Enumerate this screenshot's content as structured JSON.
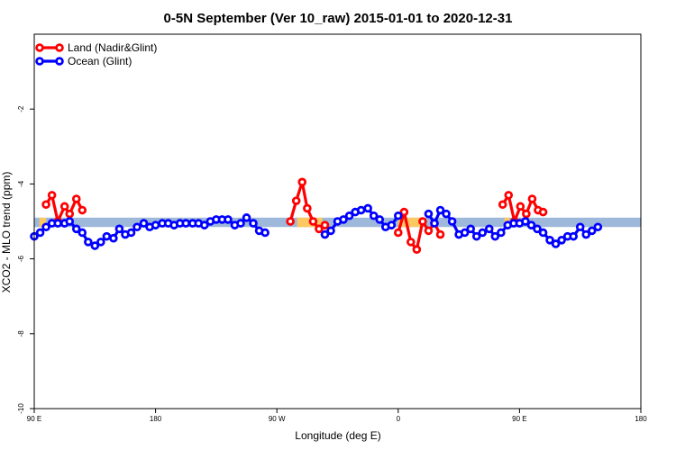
{
  "chart_data": {
    "type": "line",
    "title": "0-5N September (Ver 10_raw)   2015-01-01 to 2020-12-31",
    "xlabel": "Longitude (deg E)",
    "ylabel": "XCO2 - MLO trend (ppm)",
    "xlim": [
      90,
      450
    ],
    "ylim": [
      -10,
      0
    ],
    "grid": false,
    "legend_position": "top-left",
    "x_ticks": [
      {
        "value": 90,
        "label": "90 E"
      },
      {
        "value": 162,
        "label": "180"
      },
      {
        "value": 234,
        "label": "90 W"
      },
      {
        "value": 306,
        "label": "0"
      },
      {
        "value": 378,
        "label": "90 E"
      },
      {
        "value": 450,
        "label": "180"
      }
    ],
    "y_ticks": [
      {
        "value": -10,
        "label": "-10"
      },
      {
        "value": -8,
        "label": "-8"
      },
      {
        "value": -6,
        "label": "-6"
      },
      {
        "value": -4,
        "label": "-4"
      },
      {
        "value": -2,
        "label": "-2"
      }
    ],
    "band": {
      "ymin": -5.15,
      "ymax": -4.9,
      "color": "#9db8da"
    },
    "highlight_segments": [
      {
        "xmin": 93,
        "xmax": 97,
        "color": "#fbc862"
      },
      {
        "xmin": 246,
        "xmax": 261,
        "color": "#fbc862"
      },
      {
        "xmin": 306,
        "xmax": 321,
        "color": "#fbc862"
      },
      {
        "xmin": 369,
        "xmax": 372,
        "color": "#fbc862"
      }
    ],
    "series": [
      {
        "name": "Land (Nadir&Glint)",
        "color": "#ff0000",
        "segments": [
          {
            "x": [
              97,
              100.5,
              104,
              108,
              111,
              115,
              118.5
            ],
            "y": [
              -4.55,
              -4.3,
              -5.0,
              -4.6,
              -4.8,
              -4.4,
              -4.7
            ]
          },
          {
            "x": [
              242,
              245.5,
              249,
              252,
              255.5,
              259,
              262.5
            ],
            "y": [
              -5.0,
              -4.45,
              -3.95,
              -4.65,
              -5.0,
              -5.2,
              -5.1
            ]
          },
          {
            "x": [
              306,
              309.5,
              313.5,
              317,
              320.5,
              324,
              327.5,
              331
            ],
            "y": [
              -5.3,
              -4.75,
              -5.55,
              -5.75,
              -5.0,
              -5.25,
              -5.05,
              -5.35
            ]
          },
          {
            "x": [
              368,
              371.5,
              375,
              378.5,
              382,
              385.5,
              389,
              392
            ],
            "y": [
              -4.55,
              -4.3,
              -5.0,
              -4.6,
              -4.8,
              -4.4,
              -4.7,
              -4.75
            ]
          }
        ]
      },
      {
        "name": "Ocean (Glint)",
        "color": "#0000ff",
        "segments": [
          {
            "x": [
              90,
              93.5,
              97,
              100.5,
              104,
              108,
              111,
              115,
              118.5,
              122,
              126,
              129.5,
              133,
              137,
              140.5,
              144,
              147.5,
              151,
              155,
              158.5,
              162,
              166,
              169.5,
              173,
              176.5,
              180,
              184,
              187.5,
              191,
              194.5,
              198,
              201.5,
              205,
              209,
              212.5,
              216,
              220,
              223.5,
              227,
              230.5,
              234,
              237.5,
              241
            ],
            "y": [
              -5.4,
              -5.3,
              -5.15,
              -5.05,
              -5.05,
              -5.05,
              -5.0,
              -5.2,
              -5.3,
              -5.55,
              -5.65,
              -5.55,
              -5.4,
              -5.45,
              -5.2,
              -5.35,
              -5.3,
              -5.15,
              -5.05,
              -5.15,
              -5.1,
              -5.05,
              -5.05,
              -5.1,
              -5.05,
              -5.05,
              -5.05,
              -5.05,
              -5.1,
              -5.0,
              -4.95,
              -4.95,
              -4.95,
              -5.1,
              -5.05,
              -4.9,
              -5.05,
              -5.25,
              -5.3,
              null,
              null,
              null,
              null
            ]
          },
          {
            "x": [
              262.5,
              266,
              270,
              273.5,
              277,
              280.5,
              284,
              288,
              291.5,
              295,
              298.5,
              302,
              306
            ],
            "y": [
              -5.35,
              -5.25,
              -5.0,
              -4.95,
              -4.85,
              -4.75,
              -4.7,
              -4.65,
              -4.85,
              -4.95,
              -5.15,
              -5.1,
              -4.85
            ]
          },
          {
            "x": [
              324,
              327.5,
              331,
              334.5,
              338,
              342,
              345.5,
              349,
              352.5,
              356,
              360,
              363.5,
              367,
              371,
              374.5,
              378,
              381.5,
              385,
              388.5,
              392,
              396,
              399.5,
              403,
              406.5,
              410,
              414,
              417.5,
              421,
              424.5,
              428,
              432,
              435.5,
              439,
              442.5,
              446,
              450
            ],
            "y": [
              -4.8,
              -5.05,
              -4.7,
              -4.8,
              -5.0,
              -5.35,
              -5.3,
              -5.2,
              -5.4,
              -5.3,
              -5.2,
              -5.4,
              -5.3,
              -5.1,
              -5.05,
              -5.05,
              -5.0,
              -5.1,
              -5.2,
              -5.3,
              -5.5,
              -5.6,
              -5.5,
              -5.4,
              -5.4,
              -5.15,
              -5.35,
              -5.25,
              -5.15,
              null,
              null,
              null,
              null,
              null,
              null,
              null
            ]
          }
        ]
      }
    ]
  }
}
